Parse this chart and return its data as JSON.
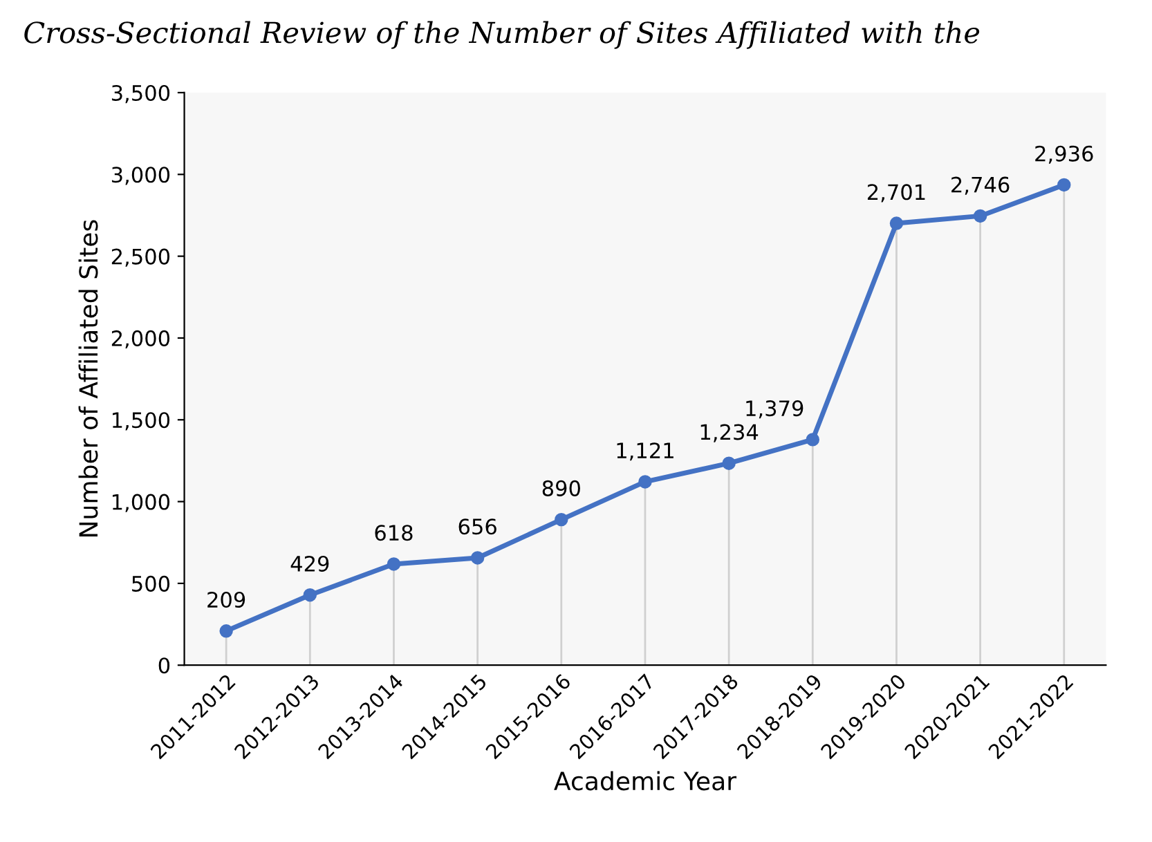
{
  "chart_data": {
    "type": "line",
    "title": "Cross-Sectional Review of the Number of Sites Affiliated with the",
    "xlabel": "Academic Year",
    "ylabel": "Number of Affiliated Sites",
    "categories": [
      "2011-2012",
      "2012-2013",
      "2013-2014",
      "2014-2015",
      "2015-2016",
      "2016-2017",
      "2017-2018",
      "2018-2019",
      "2019-2020",
      "2020-2021",
      "2021-2022"
    ],
    "series": [
      {
        "color": "#4472c4",
        "values": [
          209,
          429,
          618,
          656,
          890,
          1121,
          1234,
          1379,
          2701,
          2746,
          2936
        ],
        "value_labels": [
          "209",
          "429",
          "618",
          "656",
          "890",
          "1,121",
          "1,234",
          "1,379",
          "2,701",
          "2,746",
          "2,936"
        ]
      }
    ],
    "ylim": [
      0,
      3500
    ],
    "yticks": [
      {
        "value": 0,
        "label": "0"
      },
      {
        "value": 500,
        "label": "500"
      },
      {
        "value": 1000,
        "label": "1,000"
      },
      {
        "value": 1500,
        "label": "1,500"
      },
      {
        "value": 2000,
        "label": "2,000"
      },
      {
        "value": 2500,
        "label": "2,500"
      },
      {
        "value": 3000,
        "label": "3,000"
      },
      {
        "value": 3500,
        "label": "3,500"
      }
    ],
    "grid": "x",
    "marker": "circle",
    "line_style": "solid",
    "legend": false
  }
}
